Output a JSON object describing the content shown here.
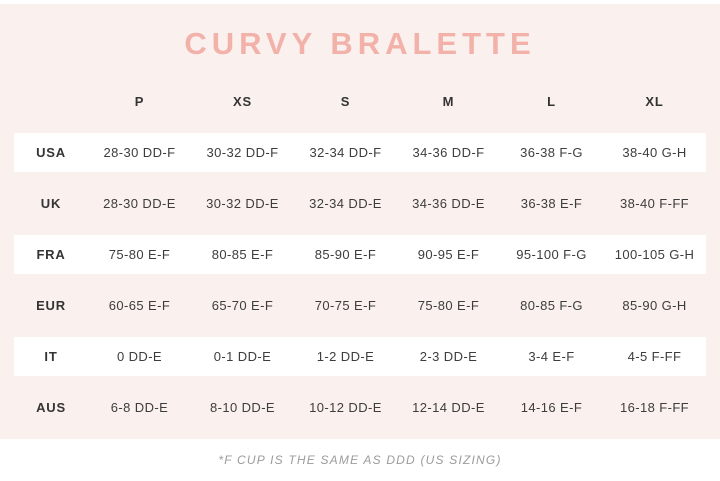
{
  "title": "CURVY BRALETTE",
  "footnote": "*F CUP IS THE SAME AS DDD (US SIZING)",
  "chart_data": {
    "type": "table",
    "title": "CURVY BRALETTE",
    "columns": [
      "P",
      "XS",
      "S",
      "M",
      "L",
      "XL"
    ],
    "rows": [
      {
        "label": "USA",
        "values": [
          "28-30 DD-F",
          "30-32 DD-F",
          "32-34 DD-F",
          "34-36 DD-F",
          "36-38 F-G",
          "38-40 G-H"
        ]
      },
      {
        "label": "UK",
        "values": [
          "28-30 DD-E",
          "30-32 DD-E",
          "32-34 DD-E",
          "34-36 DD-E",
          "36-38 E-F",
          "38-40 F-FF"
        ]
      },
      {
        "label": "FRA",
        "values": [
          "75-80 E-F",
          "80-85 E-F",
          "85-90 E-F",
          "90-95 E-F",
          "95-100 F-G",
          "100-105 G-H"
        ]
      },
      {
        "label": "EUR",
        "values": [
          "60-65 E-F",
          "65-70 E-F",
          "70-75 E-F",
          "75-80 E-F",
          "80-85 F-G",
          "85-90 G-H"
        ]
      },
      {
        "label": "IT",
        "values": [
          "0 DD-E",
          "0-1 DD-E",
          "1-2 DD-E",
          "2-3 DD-E",
          "3-4 E-F",
          "4-5 F-FF"
        ]
      },
      {
        "label": "AUS",
        "values": [
          "6-8 DD-E",
          "8-10 DD-E",
          "10-12 DD-E",
          "12-14 DD-E",
          "14-16 E-F",
          "16-18 F-FF"
        ]
      }
    ],
    "footnote": "*F CUP IS THE SAME AS DDD (US SIZING)",
    "layout": {
      "striped_rows": "USA, FRA, IT highlighted white on pink background"
    }
  },
  "colors": {
    "background": "#faf0ee",
    "row_highlight": "#ffffff",
    "title": "#f2b1a9",
    "text": "#343434",
    "footnote": "#9b9b9b"
  }
}
